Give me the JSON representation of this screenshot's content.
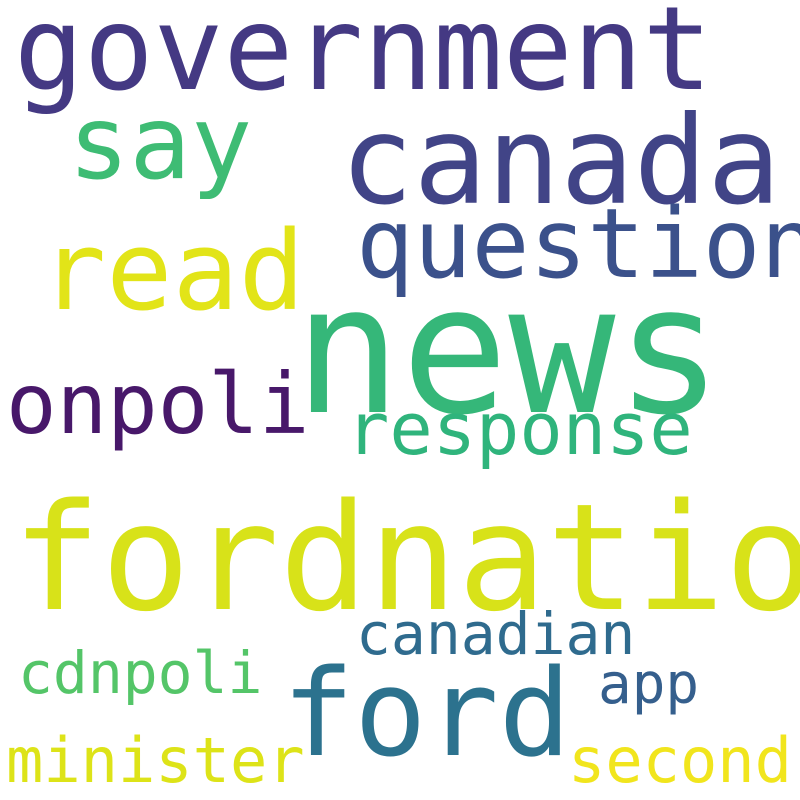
{
  "wordcloud": {
    "words": {
      "government": {
        "text": "government",
        "color": "#443983"
      },
      "say": {
        "text": "say",
        "color": "#3ebc74"
      },
      "canada": {
        "text": "canada",
        "color": "#414487"
      },
      "question": {
        "text": "question",
        "color": "#3b518b"
      },
      "read": {
        "text": "read",
        "color": "#e2e418"
      },
      "news": {
        "text": "news",
        "color": "#35b779"
      },
      "onpoli": {
        "text": "onpoli",
        "color": "#48186a"
      },
      "response": {
        "text": "response",
        "color": "#2fb47c"
      },
      "fordnation": {
        "text": "fordnation",
        "color": "#d8e219"
      },
      "canadian": {
        "text": "canadian",
        "color": "#2f6b8e"
      },
      "cdnpoli": {
        "text": "cdnpoli",
        "color": "#54c568"
      },
      "ford": {
        "text": "ford",
        "color": "#2c728e"
      },
      "app": {
        "text": "app",
        "color": "#355f8d"
      },
      "minister": {
        "text": "minister",
        "color": "#dde318"
      },
      "second": {
        "text": "second",
        "color": "#f1e51d"
      }
    }
  }
}
